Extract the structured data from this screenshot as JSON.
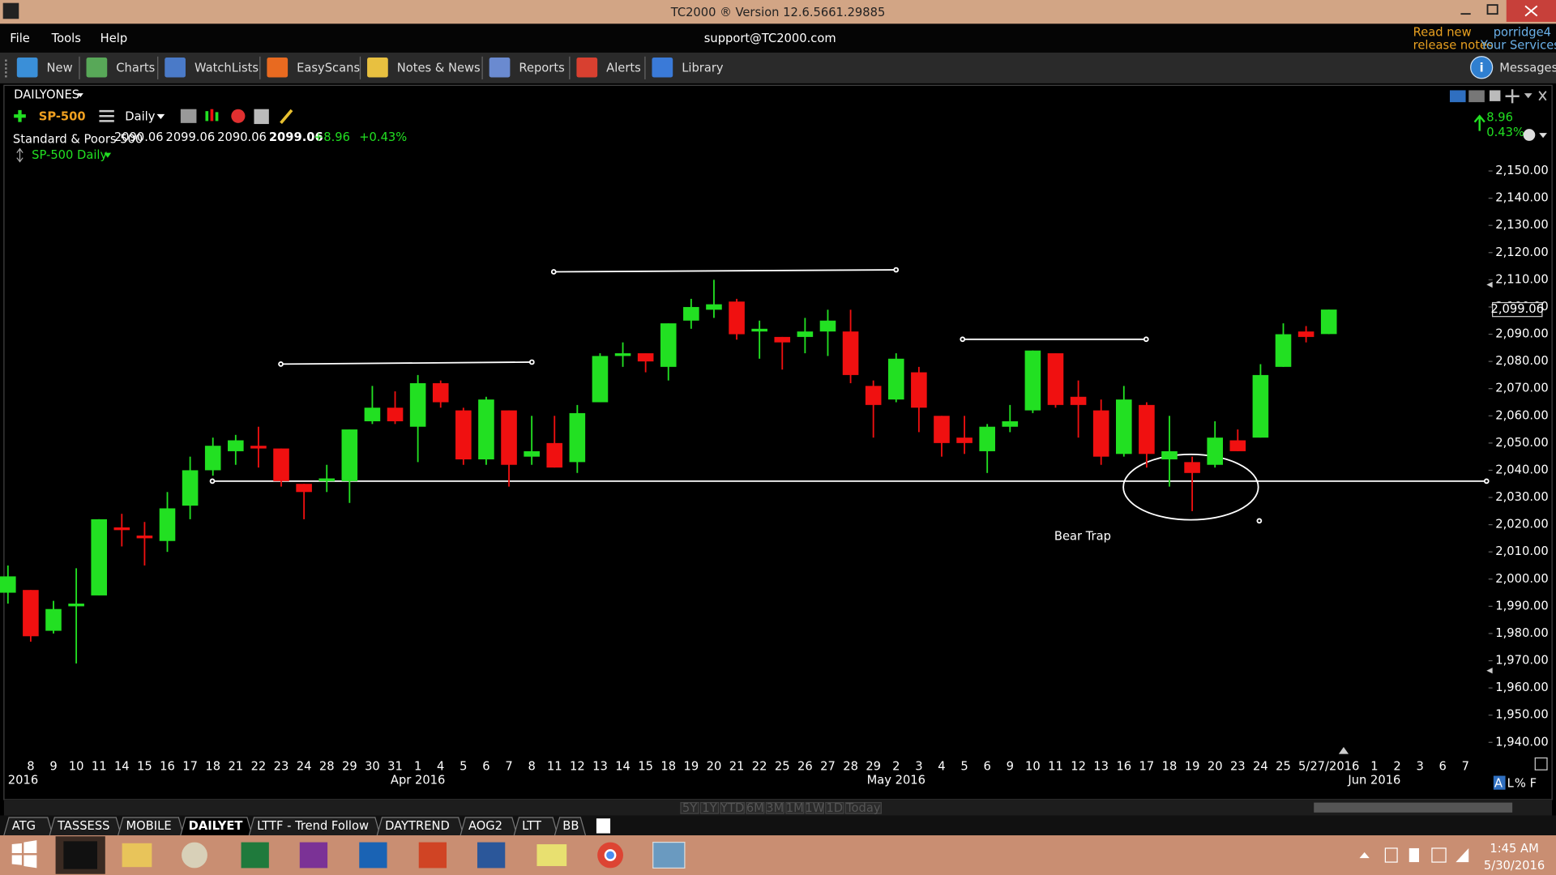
{
  "window": {
    "title": "TC2000 ® Version 12.6.5661.29885",
    "menu": [
      "File",
      "Tools",
      "Help"
    ],
    "support": "support@TC2000.com",
    "release_notes": [
      "Read new",
      "release notes"
    ],
    "user": "porridge4",
    "services": "Your Services"
  },
  "toolbar": [
    "New",
    "Charts",
    "WatchLists",
    "EasyScans",
    "Notes & News",
    "Reports",
    "Alerts",
    "Library"
  ],
  "messages": "Messages",
  "chart_header": {
    "layout": "DAILYONES",
    "symbol": "SP-500",
    "period": "Daily",
    "name": "Standard & Poors 500",
    "quote": [
      "2090.06",
      "2099.06",
      "2090.06",
      "2099.06"
    ],
    "change": "+8.96",
    "change_pct": "+0.43%",
    "study": "SP-500 Daily",
    "side_change": "8.96",
    "side_pct": "0.43%"
  },
  "range_buttons": [
    "5Y",
    "1Y",
    "YTD",
    "6M",
    "3M",
    "1M",
    "1W",
    "1D",
    "Today"
  ],
  "scale_options": [
    "A",
    "L",
    "%",
    "F"
  ],
  "tabs": [
    "ATG",
    "TASSESS",
    "MOBILE",
    "DAILYET",
    "LTTF - Trend Follow",
    "DAYTREND",
    "AOG2",
    "LTT",
    "BB"
  ],
  "clock": {
    "time": "1:45 AM",
    "date": "5/30/2016"
  },
  "chart_data": {
    "type": "candlestick",
    "categories": [
      null,
      "8",
      "9",
      "10",
      "11",
      "14",
      "15",
      "16",
      "17",
      "18",
      "21",
      "22",
      "23",
      "24",
      "28",
      "29",
      "30",
      "31",
      "1",
      "4",
      "5",
      "6",
      "7",
      "8",
      "11",
      "12",
      "13",
      "14",
      "15",
      "18",
      "19",
      "20",
      "21",
      "22",
      "25",
      "26",
      "27",
      "28",
      "29",
      "2",
      "3",
      "4",
      "5",
      "6",
      "9",
      "10",
      "11",
      "12",
      "13",
      "16",
      "17",
      "18",
      "19",
      "20",
      "23",
      "24",
      "25",
      null,
      "5/27/2016",
      null,
      "1",
      "2",
      "3",
      "6",
      "7"
    ],
    "period_labels": [
      "2016",
      "Apr 2016",
      "May 2016",
      "Jun 2016"
    ],
    "open": [
      1995,
      1996,
      1981,
      1990,
      1994,
      2019,
      2016,
      2014,
      2027,
      2040,
      2047,
      2049,
      2048,
      2035,
      2036,
      2036,
      2058,
      2063,
      2056,
      2072,
      2062,
      2044,
      2062,
      2045,
      2050,
      2043,
      2065,
      2082,
      2083,
      2078,
      2095,
      2099,
      2102,
      2091,
      2089,
      2089,
      2091,
      2091,
      2071,
      2066,
      2076,
      2060,
      2052,
      2047,
      2056,
      2062,
      2083,
      2067,
      2062,
      2046,
      2064,
      2044,
      2043,
      2042,
      2051,
      2052,
      2078,
      2091,
      2090.06,
      null,
      null,
      null,
      null,
      null,
      null
    ],
    "high": [
      2005,
      1996,
      1992,
      2004,
      2022,
      2024,
      2021,
      2032,
      2045,
      2052,
      2053,
      2056,
      2048,
      2035,
      2042,
      2055,
      2071,
      2069,
      2075,
      2073,
      2063,
      2067,
      2062,
      2060,
      2060,
      2064,
      2083,
      2087,
      2083,
      2094,
      2103,
      2110,
      2103,
      2095,
      2089,
      2096,
      2099,
      2099,
      2073,
      2083,
      2078,
      2060,
      2060,
      2057,
      2064,
      2084,
      2083,
      2073,
      2066,
      2071,
      2065,
      2060,
      2045,
      2058,
      2055,
      2079,
      2094,
      2093,
      2099.06,
      null,
      null,
      null,
      null,
      null,
      null
    ],
    "low": [
      1991,
      1977,
      1980,
      1969,
      1994,
      2012,
      2005,
      2010,
      2022,
      2038,
      2042,
      2041,
      2034,
      2022,
      2032,
      2028,
      2057,
      2057,
      2043,
      2063,
      2042,
      2042,
      2034,
      2042,
      2041,
      2039,
      2065,
      2078,
      2076,
      2073,
      2092,
      2096,
      2088,
      2081,
      2077,
      2083,
      2082,
      2072,
      2052,
      2065,
      2054,
      2045,
      2046,
      2039,
      2054,
      2061,
      2063,
      2052,
      2042,
      2045,
      2041,
      2034,
      2025,
      2041,
      2047,
      2052,
      2078,
      2087,
      2090.06,
      null,
      null,
      null,
      null,
      null,
      null
    ],
    "close": [
      2001,
      1979,
      1989,
      1991,
      2022,
      2018,
      2015,
      2026,
      2040,
      2049,
      2051,
      2048,
      2036,
      2032,
      2037,
      2055,
      2063,
      2058,
      2072,
      2065,
      2044,
      2066,
      2042,
      2047,
      2041,
      2061,
      2082,
      2083,
      2080,
      2094,
      2100,
      2101,
      2090,
      2092,
      2087,
      2091,
      2095,
      2075,
      2064,
      2081,
      2063,
      2050,
      2050,
      2056,
      2058,
      2084,
      2064,
      2064,
      2045,
      2066,
      2046,
      2047,
      2039,
      2052,
      2047,
      2075,
      2090,
      2089,
      2099.06,
      null,
      null,
      null,
      null,
      null,
      null
    ],
    "up_color": "#22e022",
    "down_color": "#f01010",
    "ylim": [
      1935,
      2154.5
    ],
    "yticks": [
      {
        "value": 1940,
        "label": "1,940.00"
      },
      {
        "value": 1950,
        "label": "1,950.00"
      },
      {
        "value": 1960,
        "label": "1,960.00"
      },
      {
        "value": 1970,
        "label": "1,970.00"
      },
      {
        "value": 1980,
        "label": "1,980.00"
      },
      {
        "value": 1990,
        "label": "1,990.00"
      },
      {
        "value": 2000,
        "label": "2,000.00"
      },
      {
        "value": 2010,
        "label": "2,010.00"
      },
      {
        "value": 2020,
        "label": "2,020.00"
      },
      {
        "value": 2030,
        "label": "2,030.00"
      },
      {
        "value": 2040,
        "label": "2,040.00"
      },
      {
        "value": 2050,
        "label": "2,050.00"
      },
      {
        "value": 2060,
        "label": "2,060.00"
      },
      {
        "value": 2070,
        "label": "2,070.00"
      },
      {
        "value": 2080,
        "label": "2,080.00"
      },
      {
        "value": 2090,
        "label": "2,090.00"
      },
      {
        "value": 2100,
        "label": "2,100.00"
      },
      {
        "value": 2110,
        "label": "2,110.00"
      },
      {
        "value": 2120,
        "label": "2,120.00"
      },
      {
        "value": 2130,
        "label": "2,130.00"
      },
      {
        "value": 2140,
        "label": "2,140.00"
      },
      {
        "value": 2150,
        "label": "2,150.00"
      }
    ],
    "price_marker": {
      "value": 2099.06,
      "label": "2,099.06"
    },
    "annotation": "Bear Trap"
  }
}
